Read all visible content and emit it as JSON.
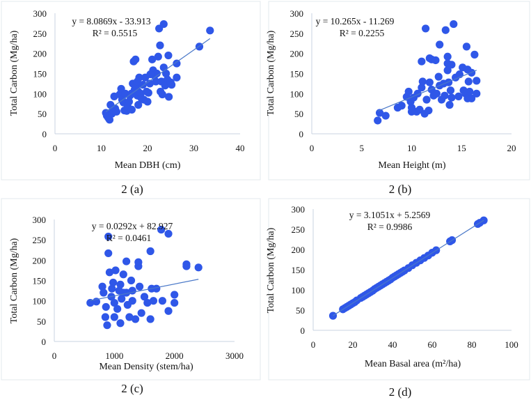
{
  "chart_data": [
    {
      "type": "scatter",
      "caption": "2 (a)",
      "xlabel": "Mean DBH (cm)",
      "ylabel": "Total Carbon (Mg/ha)",
      "xlim": [
        0,
        40
      ],
      "ylim": [
        0,
        300
      ],
      "xticks": [
        0,
        10,
        20,
        30,
        40
      ],
      "yticks": [
        0,
        50,
        100,
        150,
        200,
        250,
        300
      ],
      "equation": "y = 8.0869x - 33.913",
      "r2": "R² = 0.5515",
      "slope": 8.0869,
      "intercept": -33.913,
      "points": [
        [
          11,
          52
        ],
        [
          11.2,
          45
        ],
        [
          11.5,
          40
        ],
        [
          11.8,
          35
        ],
        [
          12,
          72
        ],
        [
          12.3,
          50
        ],
        [
          12.5,
          58
        ],
        [
          12.8,
          93
        ],
        [
          13,
          63
        ],
        [
          13.3,
          55
        ],
        [
          14,
          98
        ],
        [
          14.3,
          112
        ],
        [
          14.5,
          85
        ],
        [
          14.8,
          78
        ],
        [
          15,
          58
        ],
        [
          15.2,
          100
        ],
        [
          15.5,
          57
        ],
        [
          15.7,
          68
        ],
        [
          16,
          80
        ],
        [
          16.2,
          95
        ],
        [
          16.5,
          100
        ],
        [
          16.6,
          60
        ],
        [
          16.8,
          125
        ],
        [
          17,
          180
        ],
        [
          17.2,
          110
        ],
        [
          17.4,
          185
        ],
        [
          17.5,
          118
        ],
        [
          17.8,
          95
        ],
        [
          18,
          72
        ],
        [
          18,
          105
        ],
        [
          18.2,
          140
        ],
        [
          18.5,
          100
        ],
        [
          18.7,
          88
        ],
        [
          19,
          122
        ],
        [
          19.2,
          85
        ],
        [
          19.5,
          140
        ],
        [
          19.8,
          105
        ],
        [
          20,
          80
        ],
        [
          20.2,
          102
        ],
        [
          20.5,
          125
        ],
        [
          21,
          185
        ],
        [
          21.2,
          158
        ],
        [
          21.5,
          145
        ],
        [
          21.8,
          130
        ],
        [
          22,
          150
        ],
        [
          22.3,
          192
        ],
        [
          22.5,
          262
        ],
        [
          22.7,
          220
        ],
        [
          22.8,
          105
        ],
        [
          23,
          130
        ],
        [
          23.2,
          98
        ],
        [
          23.5,
          273
        ],
        [
          23.5,
          165
        ],
        [
          23.8,
          120
        ],
        [
          24,
          150
        ],
        [
          24.3,
          135
        ],
        [
          24.5,
          195
        ],
        [
          24.6,
          92
        ],
        [
          25,
          128
        ],
        [
          25.2,
          122
        ],
        [
          26.3,
          175
        ],
        [
          26.3,
          140
        ],
        [
          31.2,
          217
        ],
        [
          33.5,
          257
        ],
        [
          20.6,
          148
        ],
        [
          17.8,
          130
        ]
      ]
    },
    {
      "type": "scatter",
      "caption": "2 (b)",
      "xlabel": "Mean Height (m)",
      "ylabel": "Total Carbon (Mg/ha)",
      "xlim": [
        0,
        20
      ],
      "ylim": [
        0,
        300
      ],
      "xticks": [
        0,
        5,
        10,
        15,
        20
      ],
      "yticks": [
        0,
        50,
        100,
        150,
        200,
        250,
        300
      ],
      "equation": "y = 10.265x - 11.269",
      "r2": "R² = 0.2255",
      "slope": 10.265,
      "intercept": -11.269,
      "points": [
        [
          6.6,
          33
        ],
        [
          6.8,
          52
        ],
        [
          7.4,
          45
        ],
        [
          8.6,
          65
        ],
        [
          9,
          70
        ],
        [
          9.5,
          92
        ],
        [
          9.7,
          105
        ],
        [
          9.9,
          80
        ],
        [
          10,
          65
        ],
        [
          10,
          55
        ],
        [
          10.2,
          90
        ],
        [
          10.5,
          55
        ],
        [
          10.6,
          100
        ],
        [
          10.8,
          60
        ],
        [
          11,
          115
        ],
        [
          11,
          180
        ],
        [
          11.1,
          130
        ],
        [
          11.3,
          50
        ],
        [
          11.4,
          262
        ],
        [
          11.5,
          85
        ],
        [
          11.7,
          58
        ],
        [
          11.8,
          188
        ],
        [
          11.8,
          128
        ],
        [
          12,
          185
        ],
        [
          12,
          110
        ],
        [
          12.2,
          95
        ],
        [
          12.4,
          183
        ],
        [
          12.5,
          100
        ],
        [
          12.7,
          142
        ],
        [
          12.8,
          222
        ],
        [
          12.8,
          120
        ],
        [
          13,
          85
        ],
        [
          13.2,
          125
        ],
        [
          13.3,
          95
        ],
        [
          13.4,
          258
        ],
        [
          13.6,
          192
        ],
        [
          13.6,
          175
        ],
        [
          13.7,
          128
        ],
        [
          13.8,
          72
        ],
        [
          13.9,
          108
        ],
        [
          14,
          90
        ],
        [
          14,
          172
        ],
        [
          14.2,
          273
        ],
        [
          14.4,
          140
        ],
        [
          14.7,
          93
        ],
        [
          14.8,
          148
        ],
        [
          15.1,
          165
        ],
        [
          15.2,
          108
        ],
        [
          15.4,
          100
        ],
        [
          15.5,
          217
        ],
        [
          15.6,
          88
        ],
        [
          15.6,
          160
        ],
        [
          15.7,
          130
        ],
        [
          15.8,
          105
        ],
        [
          16,
          152
        ],
        [
          16,
          88
        ],
        [
          16.3,
          197
        ],
        [
          16.5,
          132
        ],
        [
          16.5,
          100
        ],
        [
          13.6,
          158
        ]
      ]
    },
    {
      "type": "scatter",
      "caption": "2 (c)",
      "xlabel": "Mean Density (stem/ha)",
      "ylabel": "Total Carbon (Mg/ha)",
      "xlim": [
        0,
        3000
      ],
      "ylim": [
        0,
        300
      ],
      "xticks": [
        0,
        1000,
        2000,
        3000
      ],
      "yticks": [
        0,
        50,
        100,
        150,
        200,
        250,
        300
      ],
      "equation": "y = 0.0292x + 82.927",
      "r2": "R² = 0.0461",
      "slope": 0.0292,
      "intercept": 82.927,
      "points": [
        [
          600,
          95
        ],
        [
          700,
          98
        ],
        [
          800,
          135
        ],
        [
          820,
          120
        ],
        [
          850,
          60
        ],
        [
          860,
          85
        ],
        [
          880,
          40
        ],
        [
          900,
          258
        ],
        [
          900,
          217
        ],
        [
          920,
          170
        ],
        [
          950,
          110
        ],
        [
          980,
          145
        ],
        [
          1000,
          95
        ],
        [
          1000,
          60
        ],
        [
          1020,
          175
        ],
        [
          1050,
          80
        ],
        [
          1080,
          125
        ],
        [
          1100,
          45
        ],
        [
          1100,
          140
        ],
        [
          1120,
          105
        ],
        [
          1150,
          165
        ],
        [
          1200,
          197
        ],
        [
          1200,
          120
        ],
        [
          1220,
          90
        ],
        [
          1250,
          60
        ],
        [
          1280,
          150
        ],
        [
          1300,
          100
        ],
        [
          1350,
          55
        ],
        [
          1400,
          185
        ],
        [
          1400,
          195
        ],
        [
          1420,
          135
        ],
        [
          1450,
          70
        ],
        [
          1500,
          110
        ],
        [
          1550,
          95
        ],
        [
          1600,
          222
        ],
        [
          1600,
          55
        ],
        [
          1620,
          130
        ],
        [
          1650,
          100
        ],
        [
          1700,
          130
        ],
        [
          1780,
          275
        ],
        [
          1800,
          100
        ],
        [
          1900,
          265
        ],
        [
          1900,
          75
        ],
        [
          2000,
          115
        ],
        [
          2000,
          95
        ],
        [
          2200,
          190
        ],
        [
          2200,
          185
        ],
        [
          2400,
          182
        ],
        [
          1300,
          125
        ],
        [
          1150,
          120
        ],
        [
          960,
          130
        ]
      ]
    },
    {
      "type": "scatter",
      "caption": "2 (d)",
      "xlabel": "Mean Basal area (m²/ha)",
      "ylabel": "Total Carbon (Mg/ha)",
      "xlim": [
        0,
        100
      ],
      "ylim": [
        0,
        300
      ],
      "xticks": [
        0,
        20,
        40,
        60,
        80,
        100
      ],
      "yticks": [
        0,
        50,
        100,
        150,
        200,
        250,
        300
      ],
      "equation": "y = 3.1051x + 5.2569",
      "r2": "R² = 0.9986",
      "slope": 3.1051,
      "intercept": 5.2569,
      "points": [
        [
          10,
          36
        ],
        [
          15,
          52
        ],
        [
          16,
          55
        ],
        [
          17,
          58
        ],
        [
          18,
          61
        ],
        [
          19,
          64
        ],
        [
          20,
          67
        ],
        [
          21,
          70
        ],
        [
          22,
          74
        ],
        [
          24,
          80
        ],
        [
          25,
          83
        ],
        [
          26,
          86
        ],
        [
          27,
          89
        ],
        [
          28,
          92
        ],
        [
          29,
          95
        ],
        [
          30,
          98
        ],
        [
          31,
          102
        ],
        [
          32,
          105
        ],
        [
          33,
          108
        ],
        [
          34,
          111
        ],
        [
          35,
          114
        ],
        [
          36,
          117
        ],
        [
          37,
          120
        ],
        [
          38,
          123
        ],
        [
          39,
          126
        ],
        [
          40,
          130
        ],
        [
          41,
          133
        ],
        [
          42,
          136
        ],
        [
          43,
          139
        ],
        [
          44,
          142
        ],
        [
          45,
          145
        ],
        [
          46,
          148
        ],
        [
          48,
          154
        ],
        [
          50,
          161
        ],
        [
          52,
          167
        ],
        [
          54,
          173
        ],
        [
          56,
          179
        ],
        [
          58,
          185
        ],
        [
          60,
          192
        ],
        [
          62,
          198
        ],
        [
          69,
          220
        ],
        [
          70,
          223
        ],
        [
          83,
          263
        ],
        [
          84,
          266
        ],
        [
          86,
          272
        ]
      ]
    }
  ],
  "colors": {
    "point": "#2f57e8",
    "trend": "#4a78c8",
    "axis": "#c8d3e2",
    "frame": "#e3e8ee"
  }
}
